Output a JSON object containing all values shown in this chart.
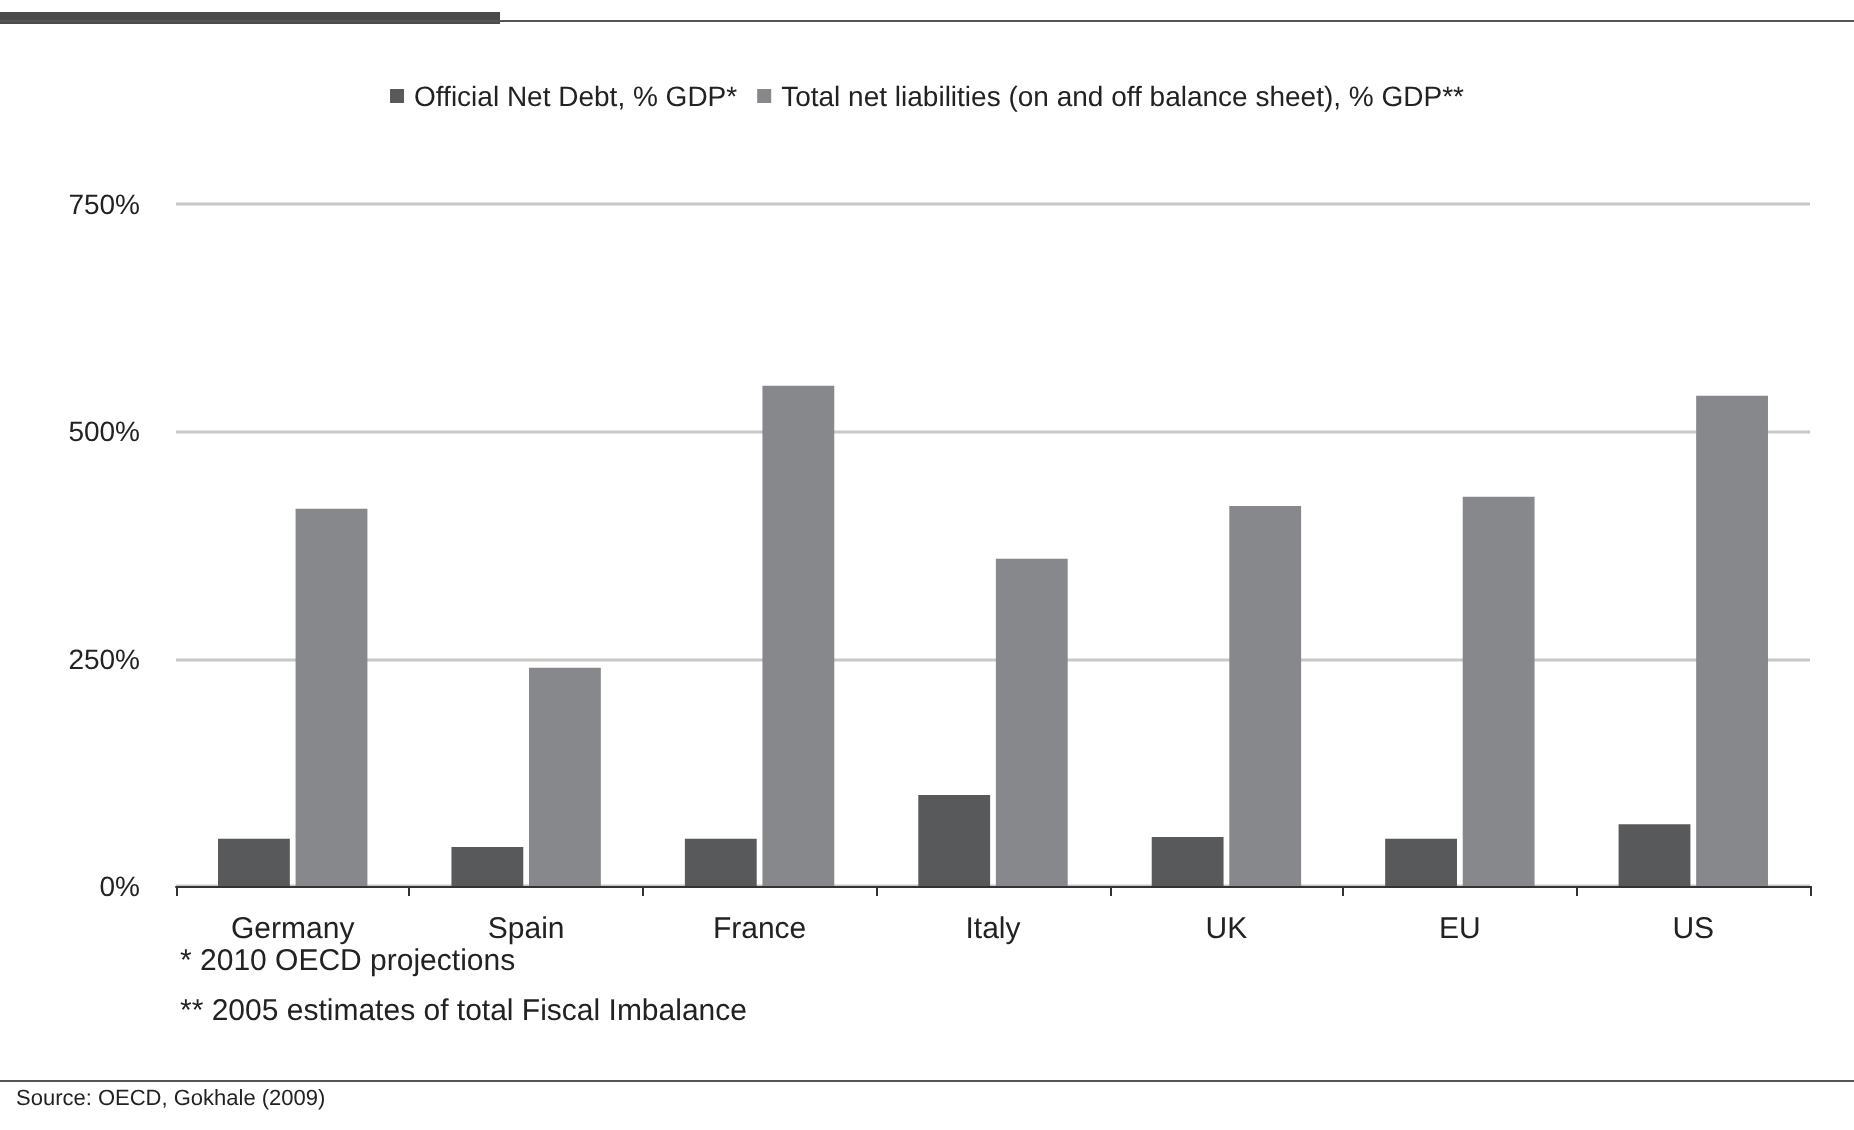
{
  "chart_data": {
    "type": "bar",
    "categories": [
      "Germany",
      "Spain",
      "France",
      "Italy",
      "UK",
      "EU",
      "US"
    ],
    "series": [
      {
        "name": "Official Net Debt, % GDP*",
        "color": "#58595b",
        "values": [
          52,
          43,
          52,
          100,
          54,
          52,
          68
        ]
      },
      {
        "name": "Total net liabilities (on and off balance sheet), % GDP**",
        "color": "#87888c",
        "values": [
          415,
          240,
          550,
          360,
          418,
          428,
          539
        ]
      }
    ],
    "ylim": [
      0,
      750
    ],
    "yticks": [
      {
        "value": 0,
        "label": "0%"
      },
      {
        "value": 250,
        "label": "250%"
      },
      {
        "value": 500,
        "label": "500%"
      },
      {
        "value": 750,
        "label": "750%"
      }
    ],
    "grid": "y",
    "legend": "top",
    "annotations": [
      "* 2010 OECD projections",
      "** 2005 estimates of total Fiscal Imbalance",
      "Source: OECD, Gokhale (2009)"
    ]
  }
}
